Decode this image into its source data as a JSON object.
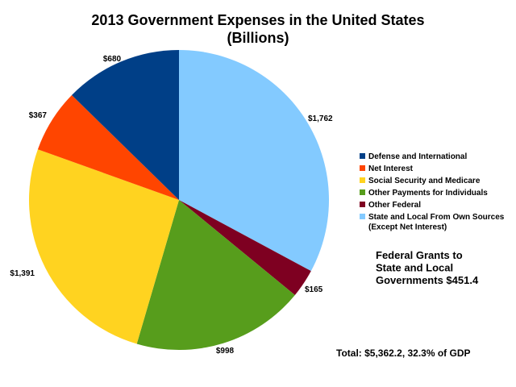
{
  "chart_data": {
    "type": "pie",
    "title": "2013 Government Expenses in the United States",
    "subtitle": "(Billions)",
    "unit": "Billions",
    "slices": [
      {
        "name": "Defense and International",
        "value": 680,
        "label": "$680",
        "color": "#003F87"
      },
      {
        "name": "Net Interest",
        "value": 367,
        "label": "$367",
        "color": "#FF4500"
      },
      {
        "name": "Social Security and Medicare",
        "value": 1391,
        "label": "$1,391",
        "color": "#FFD320"
      },
      {
        "name": "Other Payments for Individuals",
        "value": 998,
        "label": "$998",
        "color": "#579D1C"
      },
      {
        "name": "Other Federal",
        "value": 165,
        "label": "$165",
        "color": "#7E0021"
      },
      {
        "name": "State and Local From Own Sources (Except Net Interest)",
        "value": 1762,
        "label": "$1,762",
        "color": "#83CAFF"
      }
    ],
    "legend": [
      {
        "lines": [
          "Defense and International"
        ]
      },
      {
        "lines": [
          "Net Interest"
        ]
      },
      {
        "lines": [
          "Social Security and Medicare"
        ]
      },
      {
        "lines": [
          "Other Payments for Individuals"
        ]
      },
      {
        "lines": [
          "Other Federal"
        ]
      },
      {
        "lines": [
          "State and Local From Own Sources",
          "(Except Net Interest)"
        ]
      }
    ],
    "legend_position": "right",
    "annotation": [
      "Federal Grants to",
      "State and Local",
      "Governments $451.4"
    ],
    "total": "Total: $5,362.2, 32.3% of GDP"
  }
}
